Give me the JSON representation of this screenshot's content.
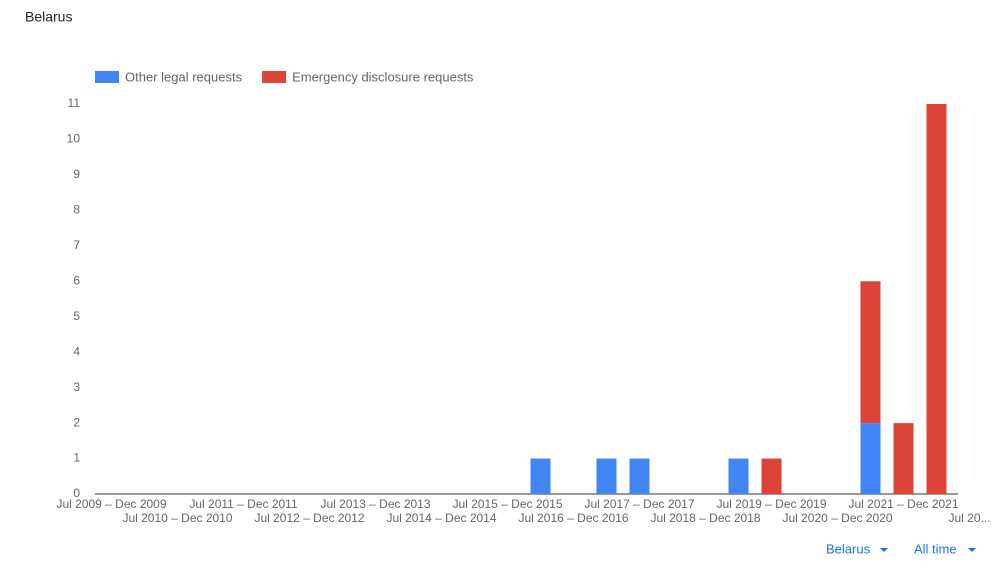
{
  "chart_data": {
    "type": "bar",
    "stacked": true,
    "title": "Belarus",
    "categories": [
      "Jul 2009 – Dec 2009",
      null,
      "Jul 2010 – Dec 2010",
      null,
      "Jul 2011 – Dec 2011",
      null,
      "Jul 2012 – Dec 2012",
      null,
      "Jul 2013 – Dec 2013",
      null,
      "Jul 2014 – Dec 2014",
      null,
      "Jul 2015 – Dec 2015",
      null,
      "Jul 2016 – Dec 2016",
      null,
      "Jul 2017 – Dec 2017",
      null,
      "Jul 2018 – Dec 2018",
      null,
      "Jul 2019 – Dec 2019",
      null,
      "Jul 2020 – Dec 2020",
      null,
      "Jul 2021 – Dec 2021",
      null,
      "Jul 20..."
    ],
    "series": [
      {
        "name": "Other legal requests",
        "color": "#4285f4",
        "values": [
          0,
          0,
          0,
          0,
          0,
          0,
          0,
          0,
          0,
          0,
          0,
          0,
          0,
          1,
          0,
          1,
          1,
          0,
          0,
          1,
          0,
          0,
          0,
          2,
          0,
          0,
          0
        ]
      },
      {
        "name": "Emergency disclosure requests",
        "color": "#db4437",
        "values": [
          0,
          0,
          0,
          0,
          0,
          0,
          0,
          0,
          0,
          0,
          0,
          0,
          0,
          0,
          0,
          0,
          0,
          0,
          0,
          0,
          1,
          0,
          0,
          4,
          2,
          11,
          0
        ]
      }
    ],
    "ylim": [
      0,
      11
    ],
    "yticks": [
      0,
      1,
      2,
      3,
      4,
      5,
      6,
      7,
      8,
      9,
      10,
      11
    ],
    "grid": false,
    "legend": "top-left"
  },
  "controls": {
    "region": "Belarus",
    "period": "All time"
  }
}
